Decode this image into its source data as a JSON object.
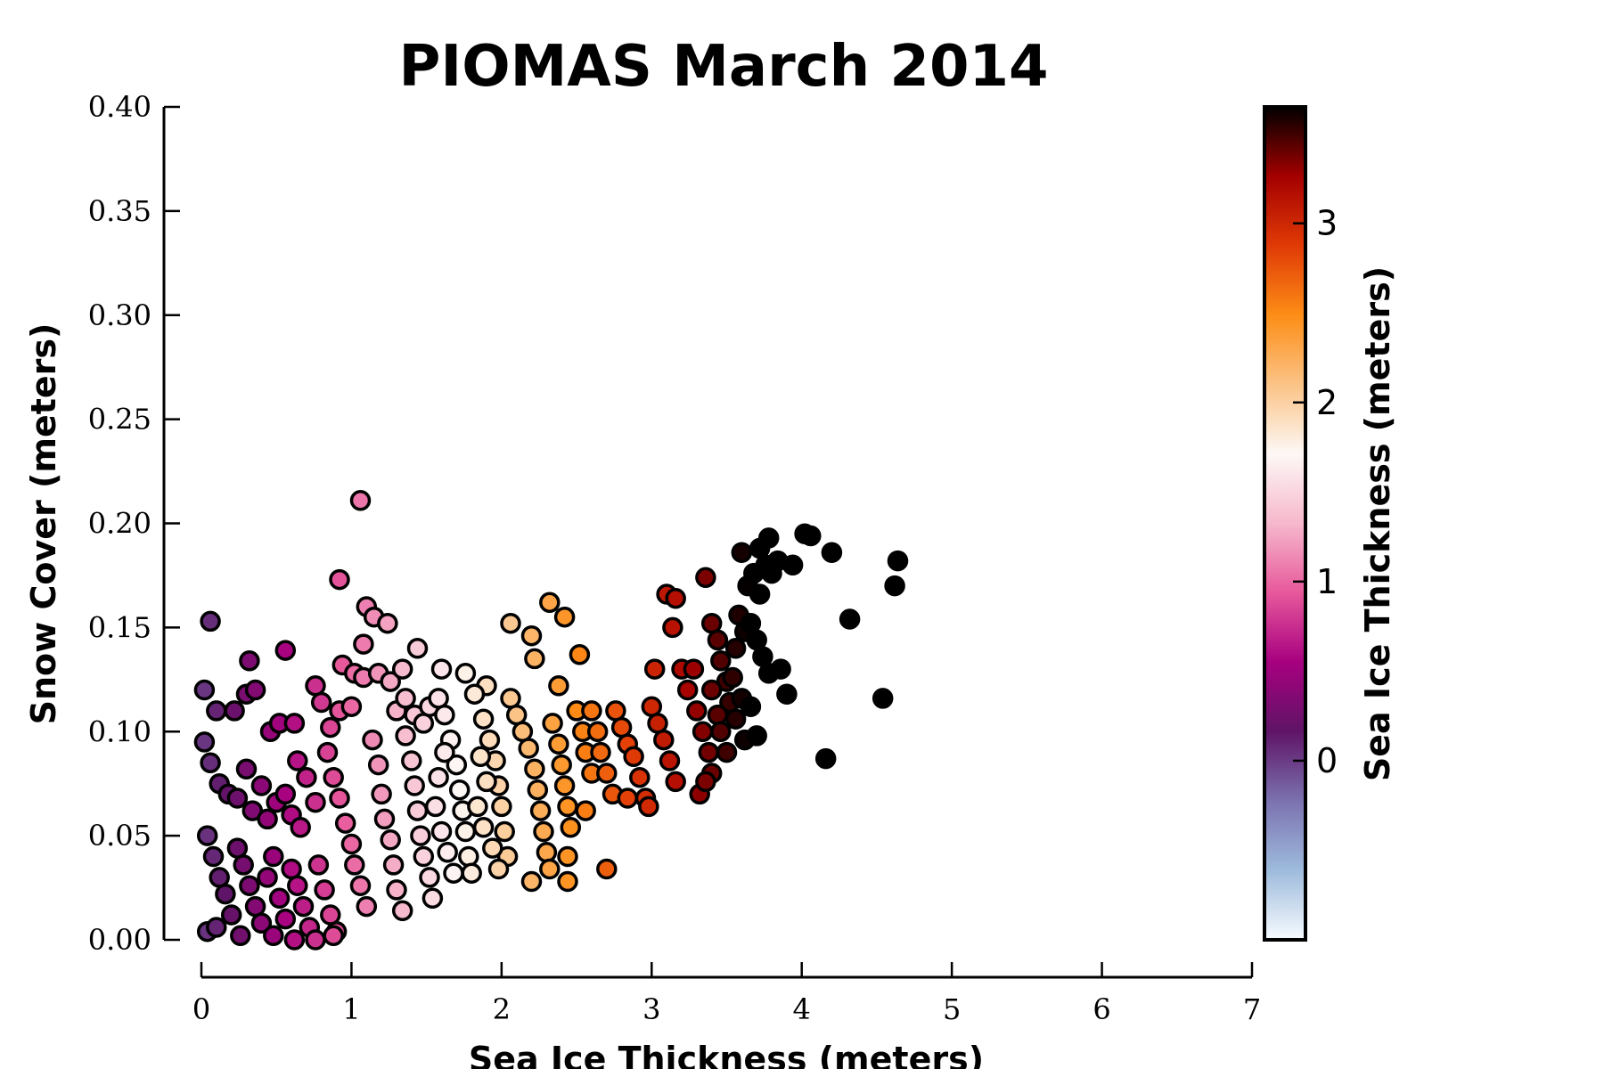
{
  "chart_data": {
    "type": "scatter",
    "title": "PIOMAS March 2014",
    "xlabel": "Sea Ice Thickness (meters)",
    "ylabel": "Snow Cover (meters)",
    "xlim": [
      0,
      7
    ],
    "ylim": [
      0,
      0.4
    ],
    "x_ticks": [
      "0",
      "1",
      "2",
      "3",
      "4",
      "5",
      "6",
      "7"
    ],
    "y_ticks": [
      "0.00",
      "0.05",
      "0.10",
      "0.15",
      "0.20",
      "0.25",
      "0.30",
      "0.35",
      "0.40"
    ],
    "grid": false,
    "colorbar": {
      "label": "Sea Ice Thickness (meters)",
      "range": [
        -1.0,
        3.65
      ],
      "ticks": [
        "0",
        "1",
        "2",
        "3"
      ],
      "colormap": [
        "#f7fbff",
        "#9ebbdc",
        "#7b72b0",
        "#5f1467",
        "#a7007f",
        "#e7589b",
        "#f6b8cc",
        "#fdf8f6",
        "#fbc386",
        "#fd8d16",
        "#e03a06",
        "#a40000",
        "#000000"
      ]
    },
    "points": [
      [
        1.06,
        0.211
      ],
      [
        0.92,
        0.173
      ],
      [
        1.1,
        0.16
      ],
      [
        1.15,
        0.155
      ],
      [
        1.24,
        0.152
      ],
      [
        1.08,
        0.142
      ],
      [
        1.44,
        0.14
      ],
      [
        0.56,
        0.139
      ],
      [
        0.32,
        0.134
      ],
      [
        0.94,
        0.132
      ],
      [
        1.02,
        0.128
      ],
      [
        1.08,
        0.126
      ],
      [
        1.18,
        0.128
      ],
      [
        1.26,
        0.124
      ],
      [
        1.34,
        0.13
      ],
      [
        1.6,
        0.13
      ],
      [
        1.76,
        0.128
      ],
      [
        1.9,
        0.122
      ],
      [
        2.06,
        0.152
      ],
      [
        2.2,
        0.146
      ],
      [
        2.32,
        0.162
      ],
      [
        2.42,
        0.155
      ],
      [
        2.52,
        0.137
      ],
      [
        2.22,
        0.135
      ],
      [
        0.06,
        0.153
      ],
      [
        0.02,
        0.12
      ],
      [
        0.1,
        0.11
      ],
      [
        0.22,
        0.11
      ],
      [
        0.3,
        0.118
      ],
      [
        0.36,
        0.12
      ],
      [
        0.46,
        0.1
      ],
      [
        0.52,
        0.104
      ],
      [
        0.62,
        0.104
      ],
      [
        0.64,
        0.086
      ],
      [
        0.76,
        0.122
      ],
      [
        0.8,
        0.114
      ],
      [
        0.86,
        0.102
      ],
      [
        0.92,
        0.11
      ],
      [
        1.0,
        0.112
      ],
      [
        0.02,
        0.095
      ],
      [
        0.06,
        0.085
      ],
      [
        0.12,
        0.075
      ],
      [
        0.18,
        0.07
      ],
      [
        0.24,
        0.068
      ],
      [
        0.3,
        0.082
      ],
      [
        0.34,
        0.062
      ],
      [
        0.4,
        0.074
      ],
      [
        0.44,
        0.058
      ],
      [
        0.5,
        0.066
      ],
      [
        0.56,
        0.07
      ],
      [
        0.6,
        0.06
      ],
      [
        0.66,
        0.054
      ],
      [
        0.7,
        0.078
      ],
      [
        0.76,
        0.066
      ],
      [
        0.04,
        0.05
      ],
      [
        0.08,
        0.04
      ],
      [
        0.12,
        0.03
      ],
      [
        0.16,
        0.022
      ],
      [
        0.2,
        0.012
      ],
      [
        0.24,
        0.044
      ],
      [
        0.28,
        0.036
      ],
      [
        0.32,
        0.026
      ],
      [
        0.36,
        0.016
      ],
      [
        0.4,
        0.008
      ],
      [
        0.44,
        0.03
      ],
      [
        0.48,
        0.04
      ],
      [
        0.52,
        0.02
      ],
      [
        0.56,
        0.01
      ],
      [
        0.6,
        0.034
      ],
      [
        0.64,
        0.026
      ],
      [
        0.68,
        0.016
      ],
      [
        0.72,
        0.006
      ],
      [
        0.78,
        0.036
      ],
      [
        0.82,
        0.024
      ],
      [
        0.86,
        0.012
      ],
      [
        0.9,
        0.004
      ],
      [
        0.04,
        0.004
      ],
      [
        0.1,
        0.006
      ],
      [
        0.26,
        0.002
      ],
      [
        0.48,
        0.002
      ],
      [
        0.62,
        0.0
      ],
      [
        0.76,
        0.0
      ],
      [
        0.88,
        0.002
      ],
      [
        0.84,
        0.09
      ],
      [
        0.88,
        0.078
      ],
      [
        0.92,
        0.068
      ],
      [
        0.96,
        0.056
      ],
      [
        1.0,
        0.046
      ],
      [
        1.02,
        0.036
      ],
      [
        1.06,
        0.026
      ],
      [
        1.1,
        0.016
      ],
      [
        1.14,
        0.096
      ],
      [
        1.18,
        0.084
      ],
      [
        1.2,
        0.07
      ],
      [
        1.22,
        0.058
      ],
      [
        1.26,
        0.048
      ],
      [
        1.28,
        0.036
      ],
      [
        1.3,
        0.024
      ],
      [
        1.34,
        0.014
      ],
      [
        1.36,
        0.098
      ],
      [
        1.4,
        0.086
      ],
      [
        1.42,
        0.074
      ],
      [
        1.44,
        0.062
      ],
      [
        1.46,
        0.05
      ],
      [
        1.48,
        0.04
      ],
      [
        1.52,
        0.03
      ],
      [
        1.54,
        0.02
      ],
      [
        1.3,
        0.11
      ],
      [
        1.36,
        0.116
      ],
      [
        1.42,
        0.108
      ],
      [
        1.48,
        0.104
      ],
      [
        1.52,
        0.112
      ],
      [
        1.58,
        0.116
      ],
      [
        1.62,
        0.108
      ],
      [
        1.66,
        0.096
      ],
      [
        1.7,
        0.084
      ],
      [
        1.72,
        0.072
      ],
      [
        1.74,
        0.062
      ],
      [
        1.76,
        0.052
      ],
      [
        1.78,
        0.04
      ],
      [
        1.8,
        0.032
      ],
      [
        1.62,
        0.09
      ],
      [
        1.58,
        0.078
      ],
      [
        1.56,
        0.064
      ],
      [
        1.6,
        0.052
      ],
      [
        1.64,
        0.042
      ],
      [
        1.68,
        0.032
      ],
      [
        1.82,
        0.118
      ],
      [
        1.88,
        0.106
      ],
      [
        1.92,
        0.096
      ],
      [
        1.96,
        0.086
      ],
      [
        1.98,
        0.074
      ],
      [
        2.0,
        0.064
      ],
      [
        2.02,
        0.052
      ],
      [
        2.04,
        0.04
      ],
      [
        1.86,
        0.088
      ],
      [
        1.9,
        0.076
      ],
      [
        1.84,
        0.064
      ],
      [
        1.88,
        0.054
      ],
      [
        1.94,
        0.044
      ],
      [
        1.98,
        0.034
      ],
      [
        2.06,
        0.116
      ],
      [
        2.1,
        0.108
      ],
      [
        2.14,
        0.1
      ],
      [
        2.18,
        0.092
      ],
      [
        2.22,
        0.082
      ],
      [
        2.24,
        0.072
      ],
      [
        2.26,
        0.062
      ],
      [
        2.28,
        0.052
      ],
      [
        2.3,
        0.042
      ],
      [
        2.32,
        0.034
      ],
      [
        2.2,
        0.028
      ],
      [
        2.34,
        0.104
      ],
      [
        2.38,
        0.094
      ],
      [
        2.4,
        0.084
      ],
      [
        2.42,
        0.074
      ],
      [
        2.44,
        0.064
      ],
      [
        2.46,
        0.054
      ],
      [
        2.5,
        0.11
      ],
      [
        2.54,
        0.1
      ],
      [
        2.56,
        0.09
      ],
      [
        2.6,
        0.08
      ],
      [
        2.44,
        0.04
      ],
      [
        2.44,
        0.028
      ],
      [
        2.38,
        0.122
      ],
      [
        2.6,
        0.11
      ],
      [
        2.64,
        0.1
      ],
      [
        2.66,
        0.09
      ],
      [
        2.7,
        0.08
      ],
      [
        2.74,
        0.07
      ],
      [
        2.76,
        0.11
      ],
      [
        2.8,
        0.102
      ],
      [
        2.84,
        0.094
      ],
      [
        2.88,
        0.088
      ],
      [
        2.92,
        0.078
      ],
      [
        2.96,
        0.068
      ],
      [
        3.0,
        0.112
      ],
      [
        3.04,
        0.104
      ],
      [
        3.08,
        0.096
      ],
      [
        3.12,
        0.086
      ],
      [
        3.16,
        0.076
      ],
      [
        3.2,
        0.13
      ],
      [
        3.02,
        0.13
      ],
      [
        2.7,
        0.034
      ],
      [
        2.56,
        0.062
      ],
      [
        2.84,
        0.068
      ],
      [
        2.98,
        0.064
      ],
      [
        3.1,
        0.166
      ],
      [
        3.16,
        0.164
      ],
      [
        3.14,
        0.15
      ],
      [
        3.28,
        0.13
      ],
      [
        3.36,
        0.174
      ],
      [
        3.24,
        0.12
      ],
      [
        3.3,
        0.11
      ],
      [
        3.34,
        0.1
      ],
      [
        3.38,
        0.09
      ],
      [
        3.4,
        0.08
      ],
      [
        3.32,
        0.07
      ],
      [
        3.36,
        0.076
      ],
      [
        3.4,
        0.152
      ],
      [
        3.44,
        0.144
      ],
      [
        3.46,
        0.134
      ],
      [
        3.5,
        0.124
      ],
      [
        3.52,
        0.114
      ],
      [
        3.56,
        0.106
      ],
      [
        3.58,
        0.156
      ],
      [
        3.62,
        0.148
      ],
      [
        3.44,
        0.108
      ],
      [
        3.46,
        0.1
      ],
      [
        3.5,
        0.09
      ],
      [
        3.4,
        0.12
      ],
      [
        3.6,
        0.116
      ],
      [
        3.62,
        0.096
      ],
      [
        3.66,
        0.112
      ],
      [
        3.7,
        0.098
      ],
      [
        3.56,
        0.14
      ],
      [
        3.54,
        0.126
      ],
      [
        3.6,
        0.186
      ],
      [
        3.64,
        0.17
      ],
      [
        3.68,
        0.176
      ],
      [
        3.72,
        0.166
      ],
      [
        3.76,
        0.18
      ],
      [
        3.66,
        0.152
      ],
      [
        3.7,
        0.144
      ],
      [
        3.74,
        0.136
      ],
      [
        3.78,
        0.128
      ],
      [
        3.72,
        0.188
      ],
      [
        3.78,
        0.193
      ],
      [
        3.8,
        0.176
      ],
      [
        3.84,
        0.182
      ],
      [
        3.94,
        0.18
      ],
      [
        3.86,
        0.13
      ],
      [
        3.9,
        0.118
      ],
      [
        4.02,
        0.195
      ],
      [
        4.06,
        0.194
      ],
      [
        4.2,
        0.186
      ],
      [
        4.32,
        0.154
      ],
      [
        4.16,
        0.087
      ],
      [
        4.54,
        0.116
      ],
      [
        4.62,
        0.17
      ],
      [
        4.64,
        0.182
      ]
    ]
  }
}
